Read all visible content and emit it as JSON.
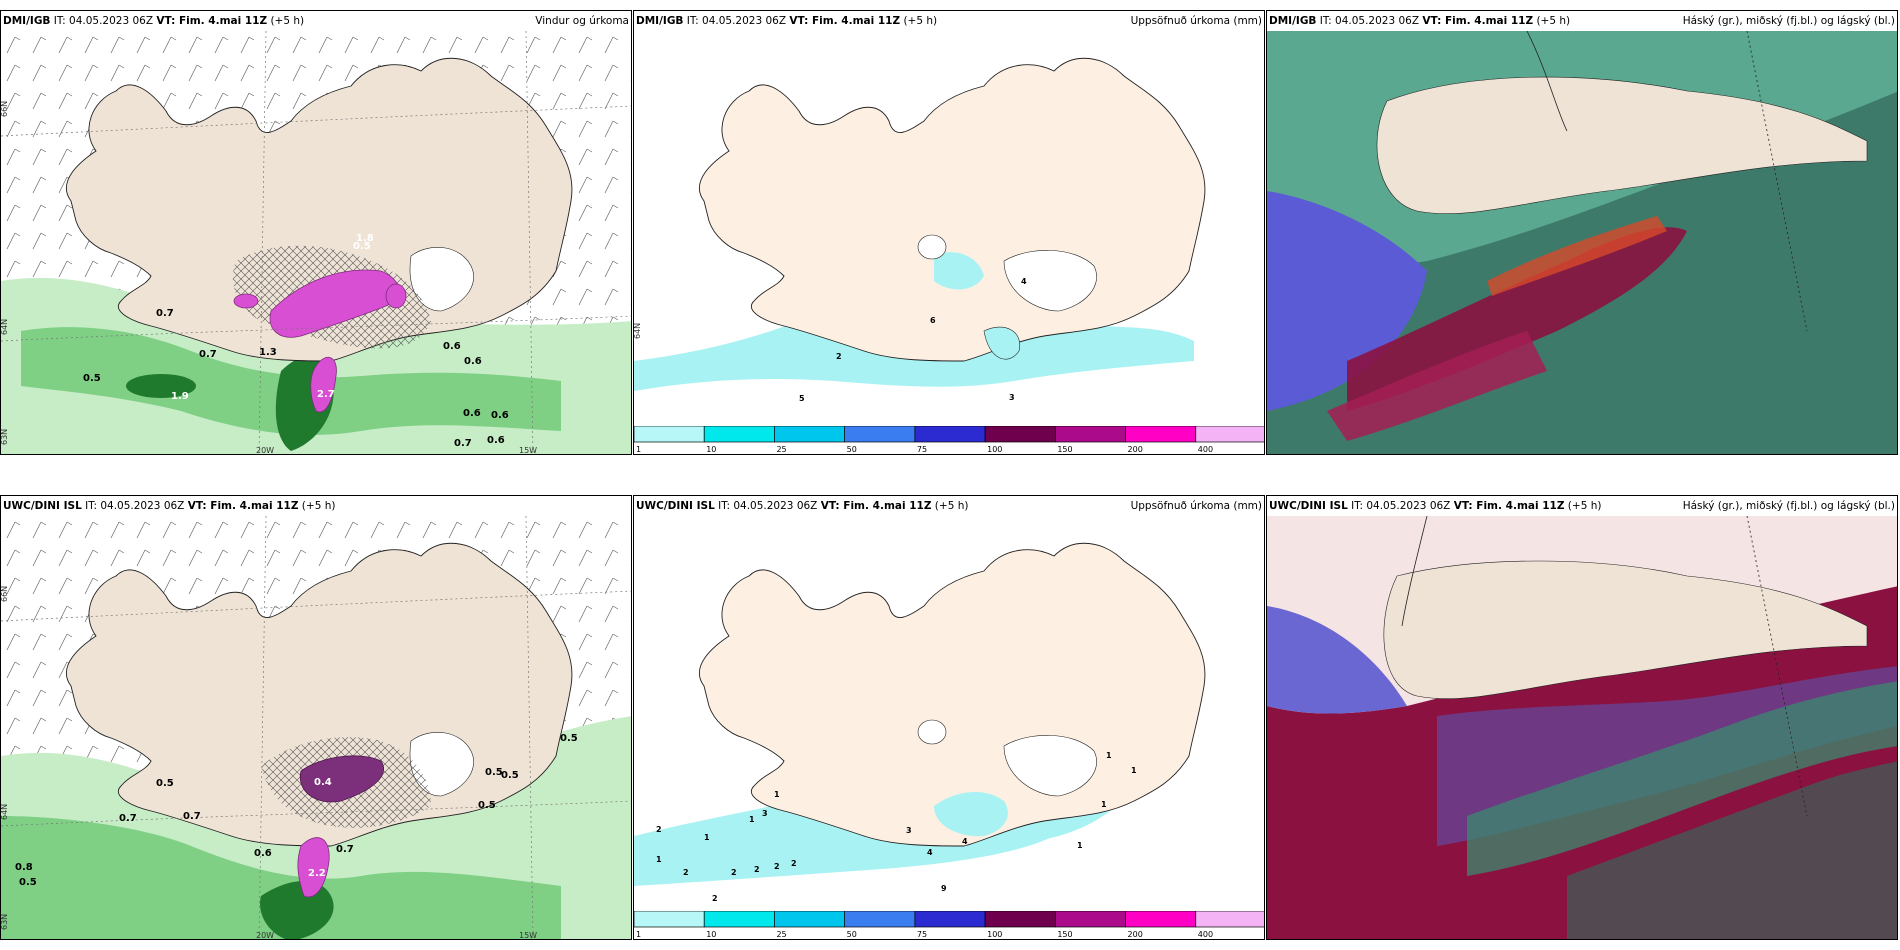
{
  "panels": [
    {
      "model": "DMI/IGB",
      "it": "IT: 04.05.2023 06Z",
      "vt": "VT: Fim. 4.mai 11Z",
      "lead": "(+5 h)",
      "product": "Vindur og úrkoma"
    },
    {
      "model": "DMI/IGB",
      "it": "IT: 04.05.2023 06Z",
      "vt": "VT: Fim. 4.mai 11Z",
      "lead": "(+5 h)",
      "product": "Uppsöfnuð úrkoma (mm)"
    },
    {
      "model": "DMI/IGB",
      "it": "IT: 04.05.2023 06Z",
      "vt": "VT: Fim. 4.mai 11Z",
      "lead": "(+5 h)",
      "product": "Háský (gr.), miðský (fj.bl.) og lágský (bl.)"
    },
    {
      "model": "UWC/DINI ISL",
      "it": "IT: 04.05.2023 06Z",
      "vt": "VT: Fim. 4.mai 11Z",
      "lead": "(+5 h)",
      "product": ""
    },
    {
      "model": "UWC/DINI ISL",
      "it": "IT: 04.05.2023 06Z",
      "vt": "VT: Fim. 4.mai 11Z",
      "lead": "(+5 h)",
      "product": "Uppsöfnuð úrkoma (mm)"
    },
    {
      "model": "UWC/DINI ISL",
      "it": "IT: 04.05.2023 06Z",
      "vt": "VT: Fim. 4.mai 11Z",
      "lead": "(+5 h)",
      "product": "Háský (gr.), miðský (fj.bl.) og lágský (bl.)"
    }
  ],
  "axis_labels": {
    "lat66": "66N",
    "lat64": "64N",
    "lat63": "63N",
    "lon20": "20W",
    "lon15": "15W"
  },
  "wind_labels_top": [
    "0.7",
    "0.7",
    "1.3",
    "0.5",
    "1.9",
    "2.7",
    "0.6",
    "0.6",
    "0.6",
    "0.7",
    "0.6",
    "0.6",
    "1.8",
    "0.5"
  ],
  "wind_labels_bottom": [
    "0.5",
    "0.7",
    "0.7",
    "0.6",
    "0.7",
    "2.2",
    "0.4",
    "0.5",
    "0.5",
    "0.5",
    "0.8",
    "0.5",
    "0.5"
  ],
  "precip_labels_top": [
    "4",
    "6",
    "2",
    "5",
    "3"
  ],
  "precip_labels_bottom": [
    "2",
    "1",
    "1",
    "2",
    "2",
    "2",
    "2",
    "2",
    "1",
    "3",
    "4",
    "1",
    "9",
    "4",
    "3",
    "1",
    "1",
    "1",
    "1",
    "2"
  ],
  "colorbar": {
    "ticks": [
      "1",
      "10",
      "25",
      "50",
      "75",
      "100",
      "150",
      "200",
      "400"
    ],
    "colors": [
      "#b7f7f7",
      "#00e8ec",
      "#00c6ee",
      "#3a7df0",
      "#2c2bd2",
      "#6e004d",
      "#ab0a8a",
      "#ff00c4",
      "#f3b3f5"
    ]
  },
  "colors": {
    "land": "#efe3d6",
    "precip_cyan": "#a9f2f3",
    "green_light": "#c6edc6",
    "green_mid": "#7fcf85",
    "green_dark": "#1f7a2e",
    "magenta": "#d94fd4",
    "purple": "#7c2f7a"
  }
}
